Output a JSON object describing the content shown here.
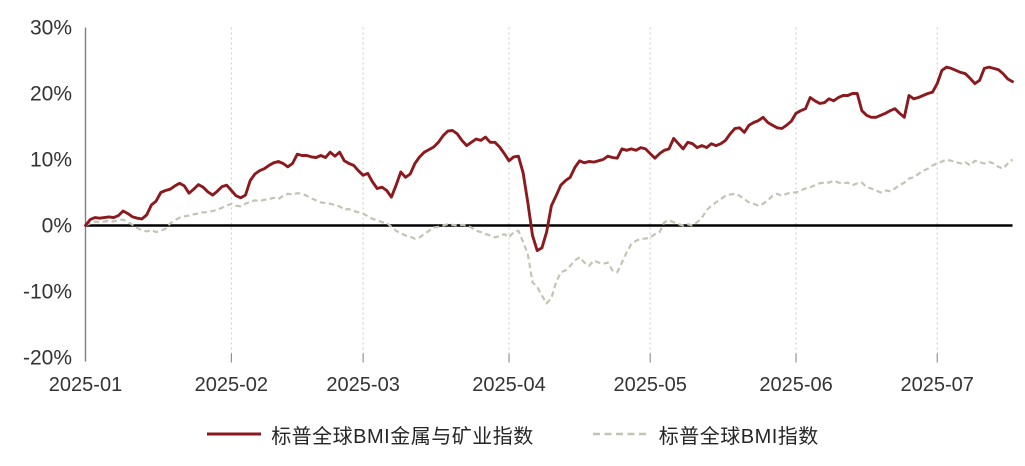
{
  "chart_data": {
    "type": "line",
    "title": "",
    "x_axis": {
      "range_days": [
        0,
        197
      ],
      "ticks": [
        {
          "label": "2025-01",
          "day": 0
        },
        {
          "label": "2025-02",
          "day": 31
        },
        {
          "label": "2025-03",
          "day": 59
        },
        {
          "label": "2025-04",
          "day": 90
        },
        {
          "label": "2025-05",
          "day": 120
        },
        {
          "label": "2025-06",
          "day": 151
        },
        {
          "label": "2025-07",
          "day": 181
        }
      ]
    },
    "y_axis": {
      "unit": "%",
      "range": [
        -20,
        30
      ],
      "ticks": [
        {
          "label": "30%",
          "value": 30
        },
        {
          "label": "20%",
          "value": 20
        },
        {
          "label": "10%",
          "value": 10
        },
        {
          "label": "0%",
          "value": 0
        },
        {
          "label": "-10%",
          "value": -10
        },
        {
          "label": "-20%",
          "value": -20
        }
      ]
    },
    "grid": "vertical-dotted-monthly",
    "legend_position": "bottom-center",
    "colors": {
      "metals_line": "#8B1A1E",
      "bmi_line": "#C3C4B4",
      "zero_line": "#000000",
      "axis_line": "#7f7f7f",
      "gridline": "#c9c9c9",
      "tick_label": "#333333"
    },
    "series": [
      {
        "name": "标普全球BMI金属与矿业指数",
        "style": "solid",
        "color": "#8B1A1E",
        "values": [
          0.0,
          0.9,
          1.2,
          1.1,
          1.2,
          1.3,
          1.2,
          1.5,
          2.2,
          1.8,
          1.3,
          1.1,
          1.0,
          1.6,
          3.1,
          3.7,
          5.0,
          5.3,
          5.5,
          6.0,
          6.4,
          6.0,
          4.9,
          5.5,
          6.2,
          5.8,
          5.1,
          4.6,
          5.2,
          5.9,
          6.1,
          5.3,
          4.5,
          4.2,
          4.6,
          6.8,
          7.8,
          8.3,
          8.6,
          9.1,
          9.5,
          9.7,
          9.4,
          8.9,
          9.4,
          10.8,
          10.6,
          10.6,
          10.4,
          10.3,
          10.6,
          10.3,
          11.1,
          10.5,
          11.1,
          9.8,
          9.4,
          9.1,
          8.3,
          7.6,
          7.9,
          6.6,
          5.6,
          5.8,
          5.3,
          4.3,
          6.1,
          8.1,
          7.3,
          7.8,
          9.4,
          10.4,
          11.1,
          11.5,
          11.9,
          12.6,
          13.6,
          14.3,
          14.4,
          13.9,
          12.9,
          12.1,
          12.6,
          13.1,
          12.9,
          13.4,
          12.6,
          12.6,
          11.9,
          10.9,
          9.8,
          10.4,
          10.5,
          8.0,
          3.5,
          -1.5,
          -3.8,
          -3.4,
          -1.0,
          3.0,
          4.5,
          6.1,
          6.8,
          7.3,
          8.8,
          9.8,
          9.5,
          9.7,
          9.6,
          9.8,
          10.0,
          10.5,
          10.3,
          10.2,
          11.6,
          11.4,
          11.6,
          11.4,
          11.8,
          11.6,
          10.9,
          10.2,
          10.9,
          11.4,
          11.6,
          13.2,
          12.4,
          11.6,
          12.6,
          12.4,
          11.8,
          12.1,
          11.8,
          12.4,
          12.1,
          12.4,
          12.9,
          13.9,
          14.7,
          14.8,
          14.1,
          15.2,
          15.6,
          15.9,
          16.4,
          15.6,
          15.2,
          14.8,
          14.7,
          15.2,
          15.8,
          17.0,
          17.4,
          17.7,
          19.4,
          18.9,
          18.5,
          18.6,
          19.2,
          18.9,
          19.4,
          19.7,
          19.7,
          20.0,
          20.0,
          17.4,
          16.7,
          16.4,
          16.4,
          16.7,
          17.0,
          17.4,
          17.7,
          17.0,
          16.4,
          19.7,
          19.2,
          19.4,
          19.7,
          20.0,
          20.2,
          21.5,
          23.5,
          24.0,
          23.8,
          23.5,
          23.2,
          23.0,
          22.3,
          21.5,
          22.0,
          23.8,
          24.0,
          23.8,
          23.6,
          23.0,
          22.2,
          21.8
        ]
      },
      {
        "name": "标普全球BMI指数",
        "style": "dashed",
        "color": "#C3C4B4",
        "values": [
          0.0,
          0.3,
          0.6,
          0.5,
          0.6,
          0.7,
          0.6,
          0.8,
          0.9,
          0.5,
          0.1,
          -0.4,
          -0.7,
          -0.9,
          -0.7,
          -1.0,
          -0.8,
          -0.5,
          0.3,
          0.8,
          1.2,
          1.4,
          1.5,
          1.7,
          1.8,
          2.0,
          2.0,
          2.2,
          2.4,
          2.7,
          3.0,
          3.3,
          3.0,
          2.9,
          3.3,
          3.6,
          3.8,
          3.7,
          3.9,
          4.0,
          4.2,
          4.0,
          4.5,
          4.8,
          4.7,
          4.9,
          4.8,
          4.5,
          4.1,
          3.8,
          3.5,
          3.4,
          3.3,
          3.1,
          2.9,
          2.4,
          2.5,
          2.2,
          2.0,
          1.8,
          1.4,
          1.0,
          0.8,
          0.5,
          0.4,
          -0.2,
          -0.8,
          -1.2,
          -1.5,
          -1.7,
          -2.0,
          -1.8,
          -1.3,
          -0.8,
          -0.3,
          -0.2,
          0.0,
          0.2,
          0.1,
          0.0,
          0.1,
          0.0,
          -0.3,
          -0.8,
          -1.0,
          -1.3,
          -1.5,
          -1.8,
          -1.6,
          -1.3,
          -1.8,
          -1.0,
          -0.8,
          -2.5,
          -4.3,
          -8.6,
          -9.3,
          -10.6,
          -11.8,
          -11.0,
          -8.6,
          -7.1,
          -6.8,
          -6.1,
          -5.3,
          -4.8,
          -5.6,
          -6.1,
          -5.3,
          -5.6,
          -5.8,
          -5.6,
          -6.8,
          -7.1,
          -5.6,
          -4.1,
          -2.8,
          -2.3,
          -2.0,
          -2.0,
          -1.8,
          -1.3,
          -1.0,
          0.5,
          0.8,
          0.5,
          0.2,
          0.0,
          0.2,
          0.0,
          0.5,
          1.2,
          2.3,
          3.0,
          3.5,
          4.0,
          4.5,
          4.7,
          4.8,
          4.5,
          4.0,
          3.5,
          3.3,
          3.0,
          3.3,
          3.8,
          4.5,
          4.8,
          4.5,
          4.8,
          5.0,
          5.0,
          5.3,
          5.6,
          5.8,
          6.1,
          6.4,
          6.5,
          6.5,
          6.8,
          6.5,
          6.4,
          6.5,
          6.1,
          6.4,
          6.5,
          5.8,
          5.6,
          5.3,
          5.0,
          5.3,
          5.2,
          5.6,
          6.1,
          6.5,
          7.1,
          7.3,
          7.8,
          8.3,
          8.6,
          9.1,
          9.4,
          9.7,
          10.0,
          9.8,
          9.6,
          9.4,
          9.6,
          9.1,
          9.8,
          9.6,
          9.4,
          9.6,
          9.4,
          8.9,
          8.6,
          9.4,
          10.0
        ]
      }
    ]
  }
}
